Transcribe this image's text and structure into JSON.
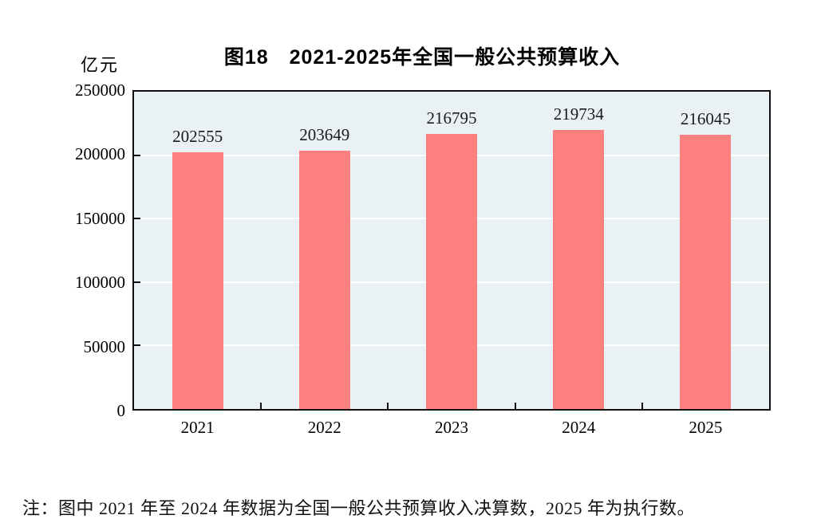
{
  "page": {
    "note": "注：图中 2021 年至 2024 年数据为全国一般公共预算收入决算数，2025 年为执行数。"
  },
  "chart_data": {
    "type": "bar",
    "title": "图18　2021-2025年全国一般公共预算收入",
    "unit": "亿元",
    "categories": [
      "2021",
      "2022",
      "2023",
      "2024",
      "2025"
    ],
    "values": [
      202555,
      203649,
      216795,
      219734,
      216045
    ],
    "xlabel": "",
    "ylabel": "亿元",
    "ylim": [
      0,
      250000
    ],
    "yticks": [
      0,
      50000,
      100000,
      150000,
      200000,
      250000
    ],
    "grid": true,
    "legend": "none",
    "bar_color": "#FC8080",
    "plot_bg": "#EAF1F5",
    "grid_color": "#FFFFFF",
    "axis_color": "#111111",
    "note": "注：图中 2021 年至 2024 年数据为全国一般公共预算收入决算数，2025 年为执行数。"
  }
}
